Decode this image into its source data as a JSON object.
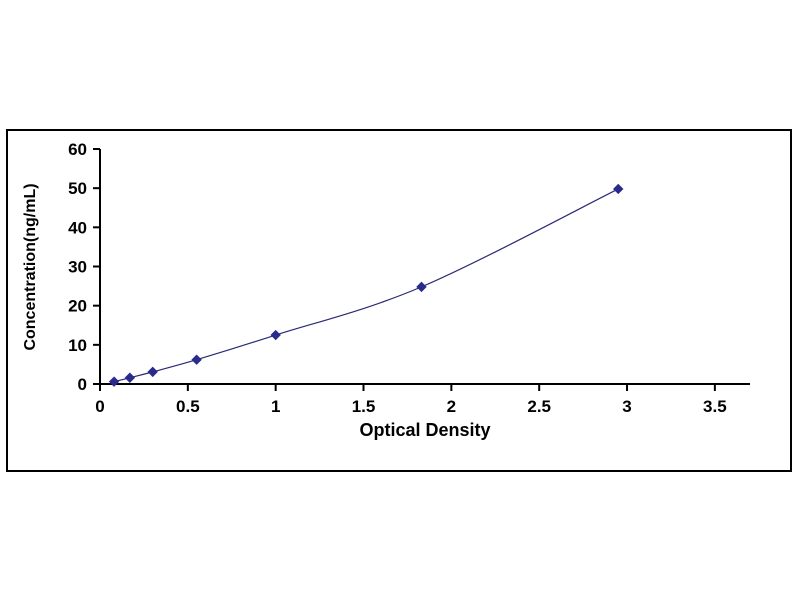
{
  "chart_data": {
    "type": "line",
    "title": "",
    "xlabel": "Optical Density",
    "ylabel": "Concentration(ng/mL)",
    "series": [
      {
        "name": "standard-curve",
        "x": [
          0.08,
          0.17,
          0.3,
          0.55,
          1.0,
          1.83,
          2.95
        ],
        "y": [
          0.6,
          1.6,
          3.1,
          6.2,
          12.5,
          24.8,
          49.8
        ]
      }
    ],
    "xlim": [
      0,
      3.7
    ],
    "ylim": [
      0,
      60
    ],
    "xticks": [
      0,
      0.5,
      1,
      1.5,
      2,
      2.5,
      3,
      3.5
    ],
    "yticks": [
      0,
      10,
      20,
      30,
      40,
      50,
      60
    ],
    "grid": false,
    "legend": "none",
    "marker": "diamond",
    "colors": {
      "line": "#2a2a75",
      "marker": "#2b2b8c",
      "axis": "#000000",
      "frame_border": "#000000",
      "background": "#ffffff"
    }
  }
}
